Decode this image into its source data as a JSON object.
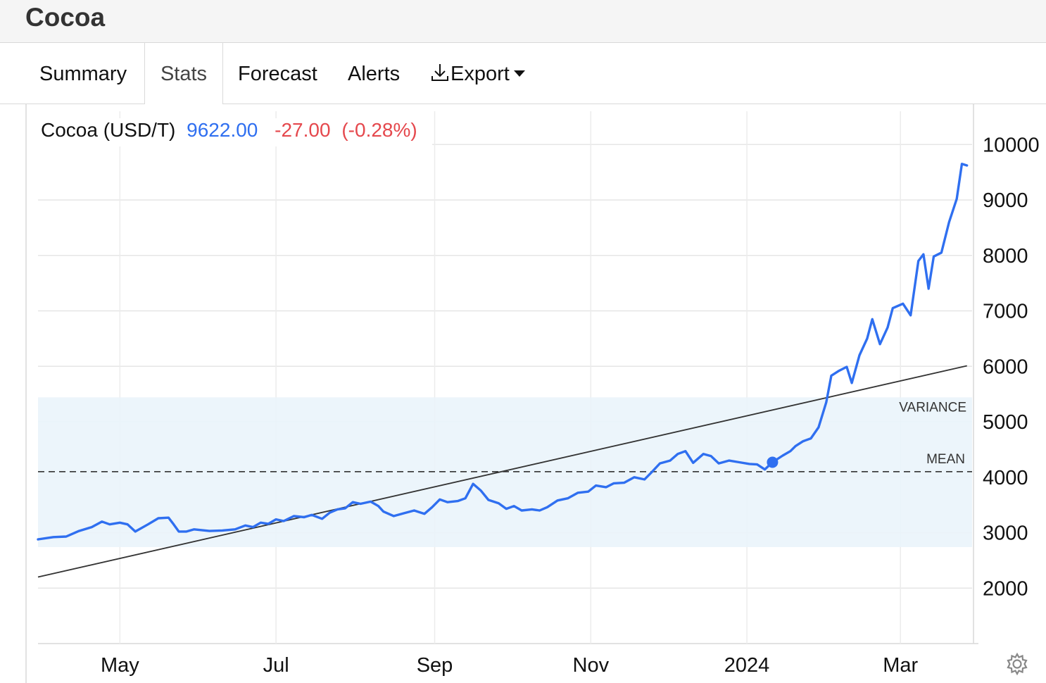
{
  "header": {
    "title": "Cocoa"
  },
  "tabs": [
    {
      "label": "Summary"
    },
    {
      "label": "Stats"
    },
    {
      "label": "Forecast"
    },
    {
      "label": "Alerts"
    },
    {
      "label": "Export"
    }
  ],
  "active_tab": "Stats",
  "colors": {
    "line": "#2f6ff0",
    "change_negative": "#e5484d",
    "band": "#eaf4fb",
    "trend": "#333333"
  },
  "icons": {
    "export": "download-icon",
    "settings": "gear-icon"
  },
  "chart_data": {
    "type": "line",
    "legend": {
      "name": "Cocoa (USD/T)",
      "last": "9622.00",
      "change": "-27.00",
      "change_pct": "(-0.28%)"
    },
    "x_ticks": [
      "May",
      "Jul",
      "Sep",
      "Nov",
      "2024",
      "Mar"
    ],
    "x_tick_dates": [
      "2023-05-01",
      "2023-07-01",
      "2023-09-01",
      "2023-11-01",
      "2024-01-01",
      "2024-03-01"
    ],
    "y_ticks": [
      2000,
      3000,
      4000,
      5000,
      6000,
      7000,
      8000,
      9000,
      10000
    ],
    "ylim": [
      1000,
      10600
    ],
    "xlim": [
      "2023-03-30",
      "2024-03-29"
    ],
    "y_axis_side": "right",
    "grid": true,
    "mean": {
      "label": "MEAN",
      "value": 4100
    },
    "variance_band": {
      "label": "VARIANCE",
      "range": [
        2740,
        5440
      ]
    },
    "trendline": [
      {
        "x": "2023-03-30",
        "y": 2200
      },
      {
        "x": "2024-03-27",
        "y": 6010
      }
    ],
    "marker": {
      "x": "2024-01-11",
      "y": 4270
    },
    "series": [
      {
        "points": [
          [
            "2023-03-30",
            2880
          ],
          [
            "2023-04-05",
            2920
          ],
          [
            "2023-04-10",
            2930
          ],
          [
            "2023-04-15",
            3030
          ],
          [
            "2023-04-20",
            3100
          ],
          [
            "2023-04-24",
            3200
          ],
          [
            "2023-04-27",
            3150
          ],
          [
            "2023-05-01",
            3180
          ],
          [
            "2023-05-04",
            3150
          ],
          [
            "2023-05-07",
            3020
          ],
          [
            "2023-05-12",
            3150
          ],
          [
            "2023-05-16",
            3260
          ],
          [
            "2023-05-20",
            3270
          ],
          [
            "2023-05-22",
            3150
          ],
          [
            "2023-05-24",
            3020
          ],
          [
            "2023-05-27",
            3020
          ],
          [
            "2023-05-30",
            3060
          ],
          [
            "2023-06-05",
            3030
          ],
          [
            "2023-06-10",
            3040
          ],
          [
            "2023-06-15",
            3060
          ],
          [
            "2023-06-19",
            3130
          ],
          [
            "2023-06-22",
            3100
          ],
          [
            "2023-06-25",
            3180
          ],
          [
            "2023-06-28",
            3160
          ],
          [
            "2023-07-01",
            3240
          ],
          [
            "2023-07-04",
            3210
          ],
          [
            "2023-07-08",
            3300
          ],
          [
            "2023-07-12",
            3280
          ],
          [
            "2023-07-15",
            3320
          ],
          [
            "2023-07-19",
            3250
          ],
          [
            "2023-07-22",
            3360
          ],
          [
            "2023-07-25",
            3420
          ],
          [
            "2023-07-28",
            3440
          ],
          [
            "2023-07-31",
            3550
          ],
          [
            "2023-08-03",
            3520
          ],
          [
            "2023-08-07",
            3560
          ],
          [
            "2023-08-10",
            3480
          ],
          [
            "2023-08-12",
            3380
          ],
          [
            "2023-08-16",
            3300
          ],
          [
            "2023-08-20",
            3350
          ],
          [
            "2023-08-24",
            3400
          ],
          [
            "2023-08-28",
            3340
          ],
          [
            "2023-08-31",
            3460
          ],
          [
            "2023-09-03",
            3600
          ],
          [
            "2023-09-06",
            3550
          ],
          [
            "2023-09-10",
            3570
          ],
          [
            "2023-09-13",
            3620
          ],
          [
            "2023-09-16",
            3880
          ],
          [
            "2023-09-19",
            3760
          ],
          [
            "2023-09-22",
            3590
          ],
          [
            "2023-09-26",
            3530
          ],
          [
            "2023-09-29",
            3430
          ],
          [
            "2023-10-02",
            3480
          ],
          [
            "2023-10-05",
            3400
          ],
          [
            "2023-10-09",
            3420
          ],
          [
            "2023-10-12",
            3400
          ],
          [
            "2023-10-15",
            3460
          ],
          [
            "2023-10-19",
            3580
          ],
          [
            "2023-10-23",
            3620
          ],
          [
            "2023-10-27",
            3720
          ],
          [
            "2023-10-31",
            3740
          ],
          [
            "2023-11-03",
            3850
          ],
          [
            "2023-11-07",
            3820
          ],
          [
            "2023-11-10",
            3890
          ],
          [
            "2023-11-14",
            3900
          ],
          [
            "2023-11-18",
            4000
          ],
          [
            "2023-11-22",
            3960
          ],
          [
            "2023-11-25",
            4100
          ],
          [
            "2023-11-28",
            4250
          ],
          [
            "2023-12-02",
            4300
          ],
          [
            "2023-12-05",
            4420
          ],
          [
            "2023-12-08",
            4470
          ],
          [
            "2023-12-11",
            4260
          ],
          [
            "2023-12-15",
            4420
          ],
          [
            "2023-12-18",
            4380
          ],
          [
            "2023-12-21",
            4250
          ],
          [
            "2023-12-25",
            4300
          ],
          [
            "2023-12-29",
            4270
          ],
          [
            "2024-01-02",
            4240
          ],
          [
            "2024-01-05",
            4230
          ],
          [
            "2024-01-08",
            4140
          ],
          [
            "2024-01-11",
            4270
          ],
          [
            "2024-01-15",
            4390
          ],
          [
            "2024-01-18",
            4470
          ],
          [
            "2024-01-20",
            4560
          ],
          [
            "2024-01-23",
            4650
          ],
          [
            "2024-01-26",
            4700
          ],
          [
            "2024-01-29",
            4900
          ],
          [
            "2024-02-01",
            5350
          ],
          [
            "2024-02-03",
            5830
          ],
          [
            "2024-02-06",
            5920
          ],
          [
            "2024-02-09",
            5990
          ],
          [
            "2024-02-11",
            5700
          ],
          [
            "2024-02-14",
            6200
          ],
          [
            "2024-02-17",
            6500
          ],
          [
            "2024-02-19",
            6850
          ],
          [
            "2024-02-22",
            6400
          ],
          [
            "2024-02-25",
            6700
          ],
          [
            "2024-02-27",
            7050
          ],
          [
            "2024-03-02",
            7130
          ],
          [
            "2024-03-05",
            6920
          ],
          [
            "2024-03-08",
            7900
          ],
          [
            "2024-03-10",
            8020
          ],
          [
            "2024-03-12",
            7400
          ],
          [
            "2024-03-14",
            7980
          ],
          [
            "2024-03-17",
            8050
          ],
          [
            "2024-03-20",
            8600
          ],
          [
            "2024-03-23",
            9020
          ],
          [
            "2024-03-25",
            9650
          ],
          [
            "2024-03-27",
            9622
          ]
        ]
      }
    ]
  }
}
